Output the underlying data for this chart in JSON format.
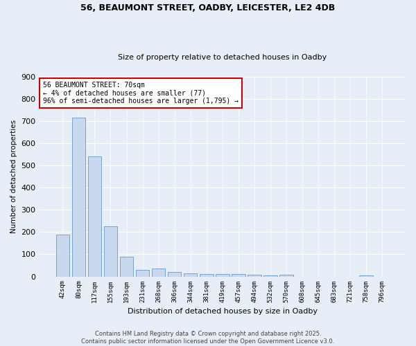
{
  "title_line1": "56, BEAUMONT STREET, OADBY, LEICESTER, LE2 4DB",
  "title_line2": "Size of property relative to detached houses in Oadby",
  "xlabel": "Distribution of detached houses by size in Oadby",
  "ylabel": "Number of detached properties",
  "bar_color": "#c8d8ee",
  "bar_edge_color": "#6699cc",
  "annotation_box_color": "#cc0000",
  "categories": [
    "42sqm",
    "80sqm",
    "117sqm",
    "155sqm",
    "193sqm",
    "231sqm",
    "268sqm",
    "306sqm",
    "344sqm",
    "381sqm",
    "419sqm",
    "457sqm",
    "494sqm",
    "532sqm",
    "570sqm",
    "608sqm",
    "645sqm",
    "683sqm",
    "721sqm",
    "758sqm",
    "796sqm"
  ],
  "values": [
    190,
    715,
    540,
    225,
    90,
    30,
    35,
    20,
    15,
    10,
    10,
    10,
    7,
    5,
    8,
    0,
    0,
    0,
    0,
    5,
    0
  ],
  "ylim": [
    0,
    900
  ],
  "yticks": [
    0,
    100,
    200,
    300,
    400,
    500,
    600,
    700,
    800,
    900
  ],
  "annotation_text": "56 BEAUMONT STREET: 70sqm\n← 4% of detached houses are smaller (77)\n96% of semi-detached houses are larger (1,795) →",
  "highlight_bar_index": 1,
  "footer_text": "Contains HM Land Registry data © Crown copyright and database right 2025.\nContains public sector information licensed under the Open Government Licence v3.0.",
  "bg_color": "#e8eef8",
  "plot_bg_color": "#e8eef8",
  "grid_color": "#ffffff",
  "title1_fontsize": 9,
  "title2_fontsize": 8
}
